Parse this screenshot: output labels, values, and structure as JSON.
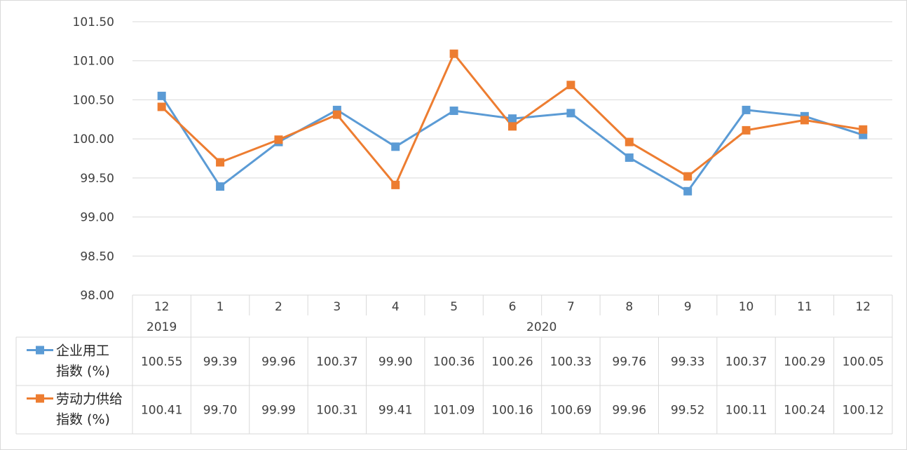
{
  "chart_data": {
    "type": "line",
    "categories": [
      "12",
      "1",
      "2",
      "3",
      "4",
      "5",
      "6",
      "7",
      "8",
      "9",
      "10",
      "11",
      "12"
    ],
    "year_groups": [
      {
        "label": "2019",
        "span": 1
      },
      {
        "label": "2020",
        "span": 12
      }
    ],
    "y_ticks": [
      "101.50",
      "101.00",
      "100.50",
      "100.00",
      "99.50",
      "99.00",
      "98.50",
      "98.00"
    ],
    "ylim": [
      98.0,
      101.5
    ],
    "grid": true,
    "series": [
      {
        "name_line1": "企业用工",
        "name_line2": "指数 (%)",
        "color": "#5B9BD5",
        "values": [
          100.55,
          99.39,
          99.96,
          100.37,
          99.9,
          100.36,
          100.26,
          100.33,
          99.76,
          99.33,
          100.37,
          100.29,
          100.05
        ],
        "labels": [
          "100.55",
          "99.39",
          "99.96",
          "100.37",
          "99.90",
          "100.36",
          "100.26",
          "100.33",
          "99.76",
          "99.33",
          "100.37",
          "100.29",
          "100.05"
        ]
      },
      {
        "name_line1": "劳动力供给",
        "name_line2": "指数 (%)",
        "color": "#ED7D31",
        "values": [
          100.41,
          99.7,
          99.99,
          100.31,
          99.41,
          101.09,
          100.16,
          100.69,
          99.96,
          99.52,
          100.11,
          100.24,
          100.12
        ],
        "labels": [
          "100.41",
          "99.70",
          "99.99",
          "100.31",
          "99.41",
          "101.09",
          "100.16",
          "100.69",
          "99.96",
          "99.52",
          "100.11",
          "100.24",
          "100.12"
        ]
      }
    ]
  }
}
